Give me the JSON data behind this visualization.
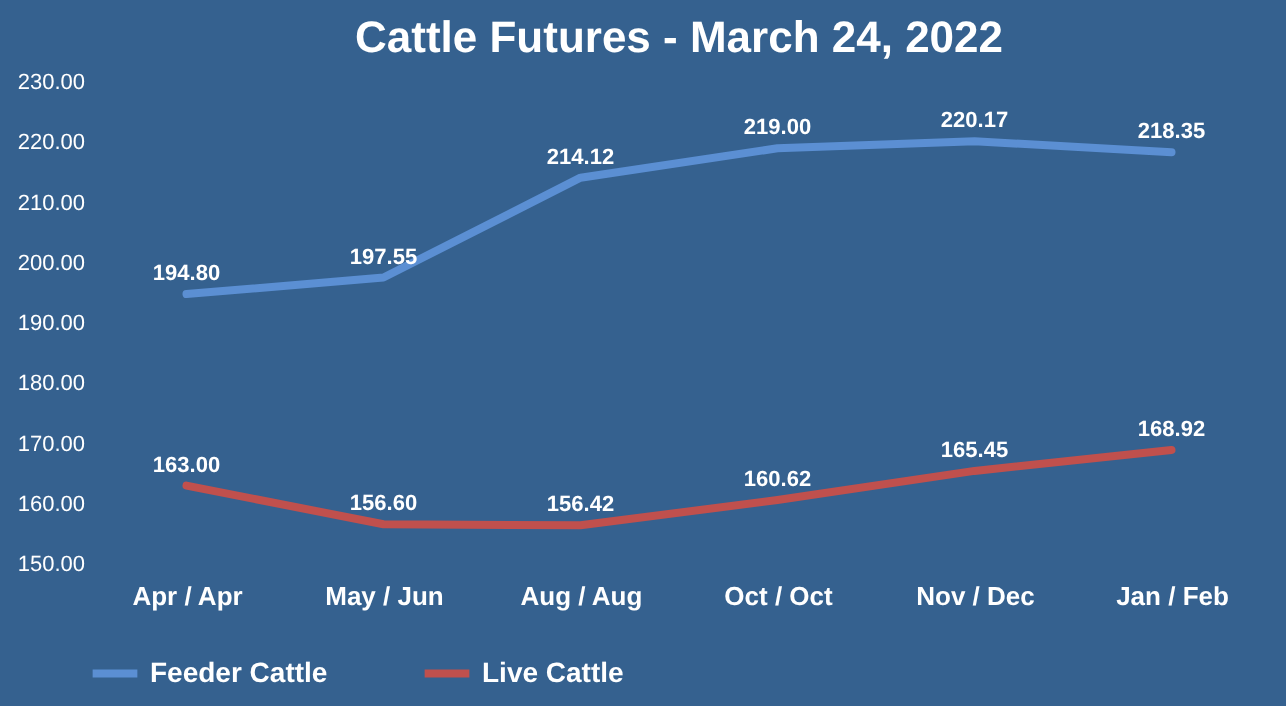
{
  "chart_data": {
    "type": "line",
    "title": "Cattle Futures - March 24, 2022",
    "categories": [
      "Apr / Apr",
      "May / Jun",
      "Aug / Aug",
      "Oct / Oct",
      "Nov / Dec",
      "Jan / Feb"
    ],
    "series": [
      {
        "name": "Feeder Cattle",
        "color": "#5b8fd3",
        "values": [
          194.8,
          197.55,
          214.12,
          219.0,
          220.17,
          218.35
        ],
        "value_labels": [
          "194.80",
          "197.55",
          "214.12",
          "219.00",
          "220.17",
          "218.35"
        ]
      },
      {
        "name": "Live Cattle",
        "color": "#c0504d",
        "values": [
          163.0,
          156.6,
          156.42,
          160.62,
          165.45,
          168.92
        ],
        "value_labels": [
          "163.00",
          "156.60",
          "156.42",
          "160.62",
          "165.45",
          "168.92"
        ]
      }
    ],
    "ylim": [
      150,
      230
    ],
    "yticks": [
      {
        "value": 150,
        "label": "150.00"
      },
      {
        "value": 160,
        "label": "160.00"
      },
      {
        "value": 170,
        "label": "170.00"
      },
      {
        "value": 180,
        "label": "180.00"
      },
      {
        "value": 190,
        "label": "190.00"
      },
      {
        "value": 200,
        "label": "200.00"
      },
      {
        "value": 210,
        "label": "210.00"
      },
      {
        "value": 220,
        "label": "220.00"
      },
      {
        "value": 230,
        "label": "230.00"
      }
    ],
    "grid": false,
    "legend": "bottom",
    "marker": "none",
    "line_style": "solid"
  }
}
